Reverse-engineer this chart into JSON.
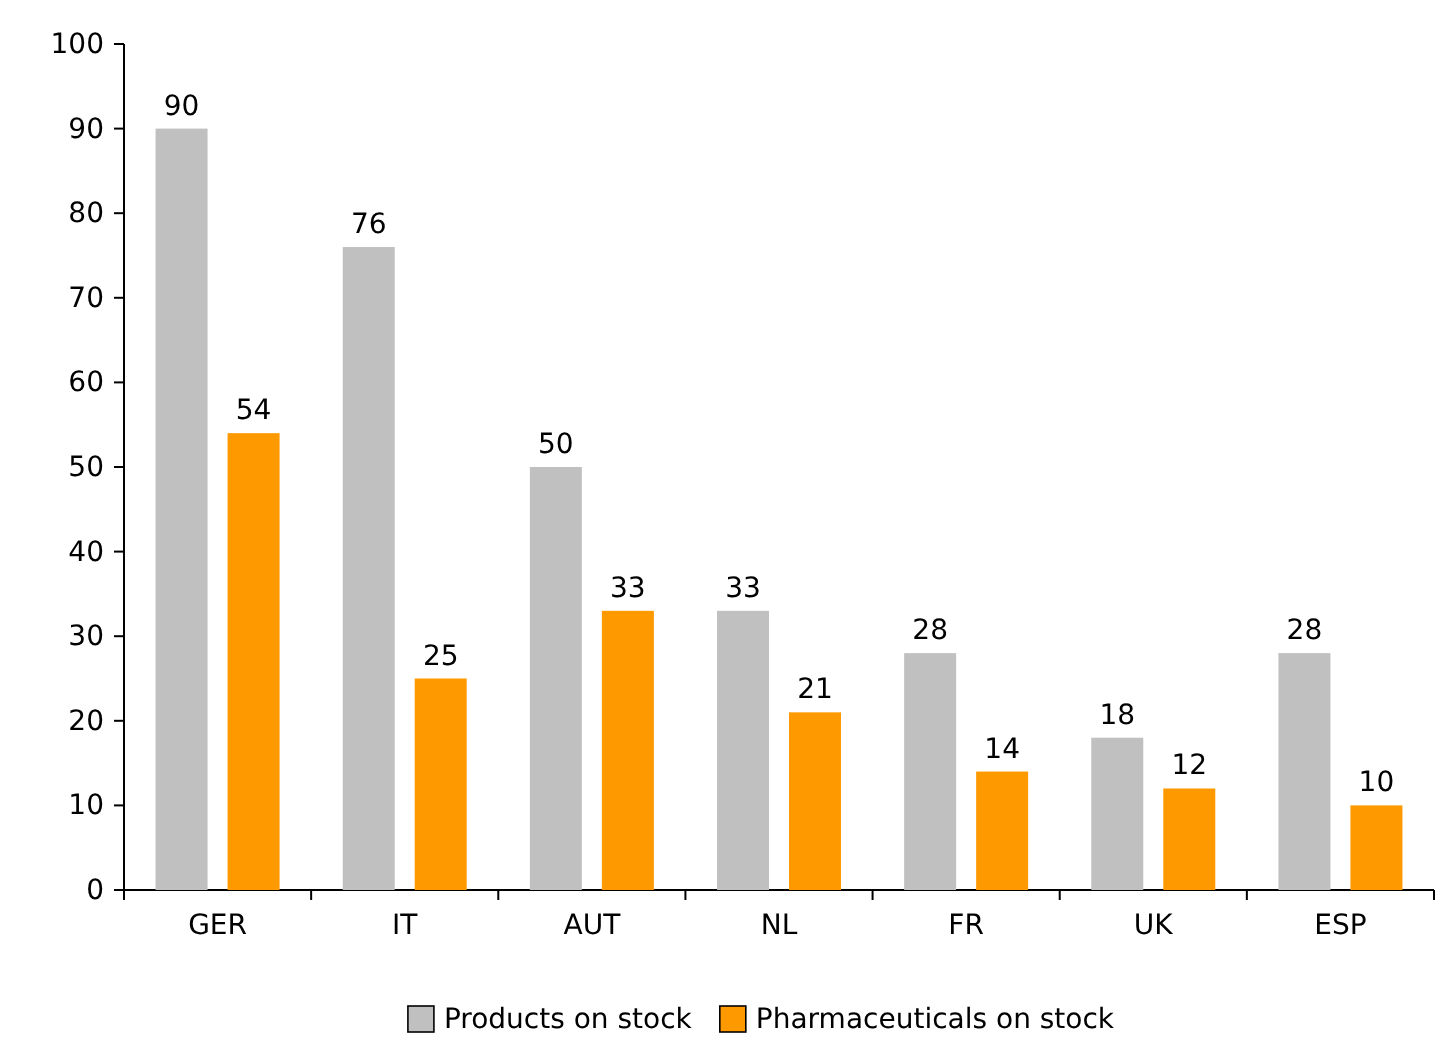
{
  "chart_data": {
    "type": "bar",
    "categories": [
      "GER",
      "IT",
      "AUT",
      "NL",
      "FR",
      "UK",
      "ESP"
    ],
    "series": [
      {
        "name": "Products on stock",
        "color": "#c0c0c0",
        "values": [
          90,
          76,
          50,
          33,
          28,
          18,
          28
        ]
      },
      {
        "name": "Pharmaceuticals on stock",
        "color": "#ff9900",
        "values": [
          54,
          25,
          33,
          21,
          14,
          12,
          10
        ]
      }
    ],
    "ylim": [
      0,
      100
    ],
    "yticks": [
      0,
      10,
      20,
      30,
      40,
      50,
      60,
      70,
      80,
      90,
      100
    ],
    "grid": false,
    "legend": "bottom",
    "data_labels": true
  }
}
